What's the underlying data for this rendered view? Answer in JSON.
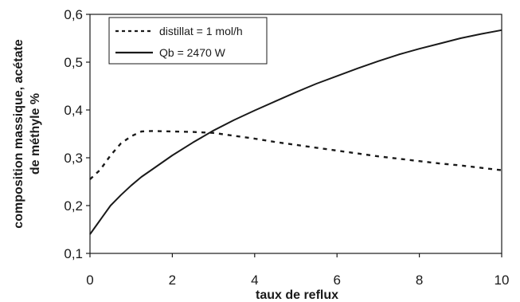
{
  "chart_data": {
    "type": "line",
    "title": "",
    "xlabel": "taux de reflux",
    "ylabel_lines": [
      "composition massique, acétate",
      "de méthyle %"
    ],
    "xlim": [
      0,
      10
    ],
    "ylim": [
      0.1,
      0.6
    ],
    "x_ticks": [
      0,
      2,
      4,
      6,
      8,
      10
    ],
    "x_tick_labels": [
      "0",
      "2",
      "4",
      "6",
      "8",
      "10"
    ],
    "y_ticks": [
      0.1,
      0.2,
      0.3,
      0.4,
      0.5,
      0.6
    ],
    "y_tick_labels": [
      "0,1",
      "0,2",
      "0,3",
      "0,4",
      "0,5",
      "0,6"
    ],
    "grid": false,
    "legend_position": "top-left",
    "series": [
      {
        "name": "distillat = 1 mol/h",
        "style": "dashed",
        "color": "#1a1a1a",
        "x": [
          0,
          0.25,
          0.5,
          0.75,
          1.0,
          1.25,
          1.5,
          2.0,
          2.5,
          3.0,
          3.5,
          4.0,
          4.5,
          5.0,
          5.5,
          6.0,
          6.5,
          7.0,
          7.5,
          8.0,
          8.5,
          9.0,
          9.5,
          10.0
        ],
        "y": [
          0.255,
          0.275,
          0.305,
          0.33,
          0.345,
          0.355,
          0.356,
          0.355,
          0.354,
          0.352,
          0.346,
          0.34,
          0.333,
          0.327,
          0.321,
          0.315,
          0.309,
          0.303,
          0.298,
          0.293,
          0.288,
          0.284,
          0.279,
          0.274
        ]
      },
      {
        "name": "Qb = 2470 W",
        "style": "solid",
        "color": "#1a1a1a",
        "x": [
          0,
          0.25,
          0.5,
          0.75,
          1.0,
          1.25,
          1.5,
          2.0,
          2.5,
          3.0,
          3.5,
          4.0,
          4.5,
          5.0,
          5.5,
          6.0,
          6.5,
          7.0,
          7.5,
          8.0,
          8.5,
          9.0,
          9.5,
          10.0
        ],
        "y": [
          0.14,
          0.17,
          0.2,
          0.222,
          0.242,
          0.26,
          0.275,
          0.305,
          0.332,
          0.357,
          0.379,
          0.399,
          0.418,
          0.437,
          0.455,
          0.471,
          0.487,
          0.502,
          0.516,
          0.528,
          0.539,
          0.55,
          0.559,
          0.567
        ]
      }
    ]
  }
}
